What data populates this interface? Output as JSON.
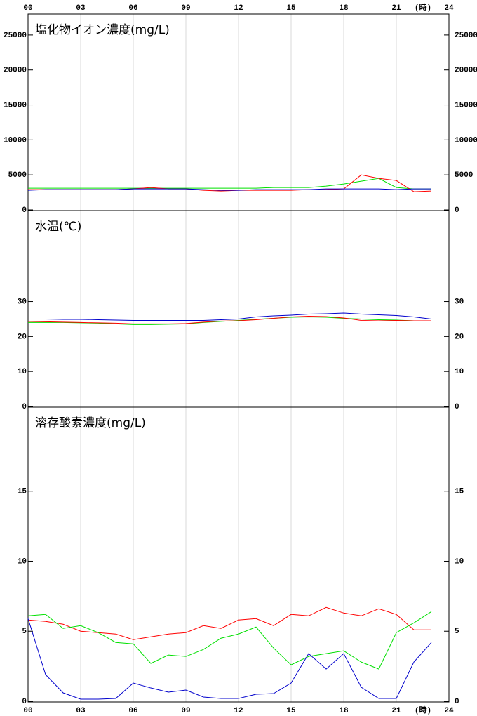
{
  "chart_data": [
    {
      "type": "line",
      "title": "塩化物イオン濃度(mg/L)",
      "x_label": "(時)",
      "xlim": [
        0,
        24
      ],
      "xticks": [
        {
          "value": 0,
          "label": "00"
        },
        {
          "value": 3,
          "label": "03"
        },
        {
          "value": 6,
          "label": "06"
        },
        {
          "value": 9,
          "label": "09"
        },
        {
          "value": 12,
          "label": "12"
        },
        {
          "value": 15,
          "label": "15"
        },
        {
          "value": 18,
          "label": "18"
        },
        {
          "value": 21,
          "label": "21"
        },
        {
          "value": 24,
          "label": "24"
        }
      ],
      "ylim": [
        0,
        28000
      ],
      "yticks": [
        0,
        5000,
        10000,
        15000,
        20000,
        25000
      ],
      "grid": true,
      "x": [
        0,
        1,
        2,
        3,
        4,
        5,
        6,
        7,
        8,
        9,
        10,
        11,
        12,
        13,
        14,
        15,
        16,
        17,
        18,
        19,
        20,
        21,
        22,
        23
      ],
      "series": [
        {
          "color": "#00e000",
          "values": [
            3100,
            3100,
            3100,
            3100,
            3100,
            3100,
            3100,
            3100,
            3100,
            3100,
            3100,
            3100,
            3100,
            3100,
            3200,
            3200,
            3200,
            3400,
            3700,
            4100,
            4500,
            3200,
            3000,
            3000
          ]
        },
        {
          "color": "#ff0000",
          "values": [
            2900,
            2900,
            2900,
            2900,
            2900,
            2900,
            3000,
            3200,
            3000,
            3000,
            2800,
            2700,
            2800,
            2800,
            2800,
            2800,
            2900,
            2900,
            3000,
            5000,
            4500,
            4200,
            2600,
            2700
          ]
        },
        {
          "color": "#0000cc",
          "values": [
            2800,
            2900,
            2900,
            2900,
            2900,
            2900,
            3000,
            3000,
            3000,
            3000,
            2900,
            2800,
            2800,
            2900,
            2900,
            2900,
            2900,
            3000,
            3000,
            3000,
            3000,
            2900,
            3000,
            3000
          ]
        }
      ]
    },
    {
      "type": "line",
      "title": "水温(℃)",
      "xlim": [
        0,
        24
      ],
      "xticks": [
        {
          "value": 0,
          "label": "00"
        },
        {
          "value": 3,
          "label": "03"
        },
        {
          "value": 6,
          "label": "06"
        },
        {
          "value": 9,
          "label": "09"
        },
        {
          "value": 12,
          "label": "12"
        },
        {
          "value": 15,
          "label": "15"
        },
        {
          "value": 18,
          "label": "18"
        },
        {
          "value": 21,
          "label": "21"
        },
        {
          "value": 24,
          "label": "24"
        }
      ],
      "ylim": [
        0,
        56
      ],
      "yticks": [
        0,
        10,
        20,
        30
      ],
      "grid": true,
      "x": [
        0,
        1,
        2,
        3,
        4,
        5,
        6,
        7,
        8,
        9,
        10,
        11,
        12,
        13,
        14,
        15,
        16,
        17,
        18,
        19,
        20,
        21,
        22,
        23
      ],
      "series": [
        {
          "color": "#00e000",
          "values": [
            24.0,
            24.0,
            24.0,
            23.9,
            23.8,
            23.6,
            23.4,
            23.4,
            23.5,
            23.6,
            24.0,
            24.3,
            24.6,
            24.9,
            25.2,
            25.5,
            25.6,
            25.5,
            25.2,
            25.0,
            24.8,
            24.7,
            24.5,
            24.4
          ]
        },
        {
          "color": "#ff0000",
          "values": [
            24.3,
            24.2,
            24.1,
            24.0,
            23.9,
            23.8,
            23.6,
            23.6,
            23.6,
            23.7,
            24.1,
            24.4,
            24.5,
            24.8,
            25.2,
            25.6,
            25.8,
            25.7,
            25.3,
            24.6,
            24.5,
            24.6,
            24.5,
            24.5
          ]
        },
        {
          "color": "#0000cc",
          "values": [
            25.0,
            25.0,
            24.9,
            24.9,
            24.8,
            24.7,
            24.6,
            24.6,
            24.6,
            24.6,
            24.6,
            24.8,
            25.0,
            25.6,
            25.9,
            26.1,
            26.4,
            26.5,
            26.7,
            26.4,
            26.2,
            26.0,
            25.6,
            25.0
          ]
        }
      ]
    },
    {
      "type": "line",
      "title": "溶存酸素濃度(mg/L)",
      "x_label": "(時)",
      "xlim": [
        0,
        24
      ],
      "xticks": [
        {
          "value": 0,
          "label": "00"
        },
        {
          "value": 3,
          "label": "03"
        },
        {
          "value": 6,
          "label": "06"
        },
        {
          "value": 9,
          "label": "09"
        },
        {
          "value": 12,
          "label": "12"
        },
        {
          "value": 15,
          "label": "15"
        },
        {
          "value": 18,
          "label": "18"
        },
        {
          "value": 21,
          "label": "21"
        },
        {
          "value": 24,
          "label": "24"
        }
      ],
      "ylim": [
        0,
        21
      ],
      "yticks": [
        0,
        5,
        10,
        15
      ],
      "grid": true,
      "x": [
        0,
        1,
        2,
        3,
        4,
        5,
        6,
        7,
        8,
        9,
        10,
        11,
        12,
        13,
        14,
        15,
        16,
        17,
        18,
        19,
        20,
        21,
        22,
        23
      ],
      "series": [
        {
          "color": "#ff0000",
          "values": [
            5.8,
            5.7,
            5.5,
            5.0,
            4.9,
            4.8,
            4.4,
            4.6,
            4.8,
            4.9,
            5.4,
            5.2,
            5.8,
            5.9,
            5.4,
            6.2,
            6.1,
            6.7,
            6.3,
            6.1,
            6.6,
            6.2,
            5.1,
            5.1
          ]
        },
        {
          "color": "#00e000",
          "values": [
            6.1,
            6.2,
            5.2,
            5.4,
            4.9,
            4.2,
            4.1,
            2.7,
            3.3,
            3.2,
            3.7,
            4.5,
            4.8,
            5.3,
            3.8,
            2.6,
            3.2,
            3.4,
            3.6,
            2.8,
            2.3,
            4.9,
            5.6,
            6.4
          ]
        },
        {
          "color": "#0000cc",
          "values": [
            5.9,
            1.9,
            0.6,
            0.15,
            0.15,
            0.2,
            1.3,
            0.95,
            0.65,
            0.8,
            0.3,
            0.2,
            0.2,
            0.5,
            0.55,
            1.3,
            3.4,
            2.3,
            3.4,
            1.0,
            0.2,
            0.2,
            2.8,
            4.2
          ]
        }
      ]
    }
  ]
}
